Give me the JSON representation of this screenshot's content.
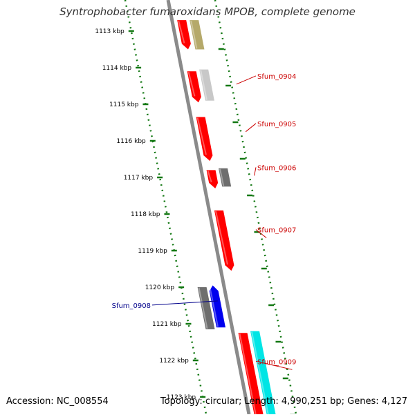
{
  "title": "Syntrophobacter fumaroxidans MPOB, complete genome",
  "footer": {
    "accession": "Accession: NC_008554",
    "summary": "Topology: circular; Length: 4,990,251 bp; Genes: 4,127"
  },
  "colors": {
    "backbone": "#8a8a8a",
    "ruler": "#117711",
    "forward_gene": "#ff0000",
    "reverse_gene": "#0000ee",
    "label_forward": "#cc0000",
    "label_reverse": "#00008b"
  },
  "ruler": {
    "unit": "kbp",
    "ticks": [
      {
        "kbp": 1113,
        "label": "1113 kbp"
      },
      {
        "kbp": 1114,
        "label": "1114 kbp"
      },
      {
        "kbp": 1115,
        "label": "1115 kbp"
      },
      {
        "kbp": 1116,
        "label": "1116 kbp"
      },
      {
        "kbp": 1117,
        "label": "1117 kbp"
      },
      {
        "kbp": 1118,
        "label": "1118 kbp"
      },
      {
        "kbp": 1119,
        "label": "1119 kbp"
      },
      {
        "kbp": 1120,
        "label": "1120 kbp"
      },
      {
        "kbp": 1121,
        "label": "1121 kbp"
      },
      {
        "kbp": 1122,
        "label": "1122 kbp"
      },
      {
        "kbp": 1123,
        "label": "1123 kbp"
      }
    ]
  },
  "features": [
    {
      "lane": "inner",
      "start": 1112.7,
      "end": 1113.5,
      "color": "#ff0000",
      "arrow": "end"
    },
    {
      "lane": "outer",
      "start": 1112.7,
      "end": 1113.5,
      "color": "#b5a96a",
      "arrow": "none"
    },
    {
      "lane": "inner",
      "start": 1114.1,
      "end": 1114.95,
      "color": "#ff0000",
      "arrow": "end"
    },
    {
      "lane": "outer",
      "start": 1114.05,
      "end": 1114.9,
      "color": "#c8c8c8",
      "arrow": "none"
    },
    {
      "lane": "inner",
      "start": 1115.35,
      "end": 1116.55,
      "color": "#ff0000",
      "arrow": "end"
    },
    {
      "lane": "inner",
      "start": 1116.8,
      "end": 1117.3,
      "color": "#ff0000",
      "arrow": "end"
    },
    {
      "lane": "outer",
      "start": 1116.75,
      "end": 1117.25,
      "color": "#6e6e6e",
      "arrow": "none"
    },
    {
      "lane": "inner",
      "start": 1117.9,
      "end": 1119.55,
      "color": "#ff0000",
      "arrow": "end"
    },
    {
      "lane": "left",
      "start": 1120.0,
      "end": 1121.15,
      "color": "#6e6e6e",
      "arrow": "none"
    },
    {
      "lane": "innerleft",
      "start": 1119.95,
      "end": 1121.1,
      "color": "#0000ee",
      "arrow": "start"
    },
    {
      "lane": "inner",
      "start": 1121.25,
      "end": 1123.5,
      "color": "#ff0000",
      "arrow": "none"
    },
    {
      "lane": "outer",
      "start": 1121.2,
      "end": 1123.5,
      "color": "#00e5e5",
      "arrow": "none"
    }
  ],
  "gene_labels": [
    {
      "text": "Sfum_0904",
      "side": "right",
      "kbp": 1114.3,
      "color": "#cc0000"
    },
    {
      "text": "Sfum_0905",
      "side": "right",
      "kbp": 1115.6,
      "color": "#cc0000"
    },
    {
      "text": "Sfum_0906",
      "side": "right",
      "kbp": 1116.8,
      "color": "#cc0000"
    },
    {
      "text": "Sfum_0907",
      "side": "right",
      "kbp": 1118.5,
      "color": "#cc0000"
    },
    {
      "text": "Sfum_0908",
      "side": "left",
      "kbp": 1120.45,
      "color": "#00008b"
    },
    {
      "text": "Sfum_0909",
      "side": "right",
      "kbp": 1122.1,
      "color": "#cc0000"
    }
  ]
}
